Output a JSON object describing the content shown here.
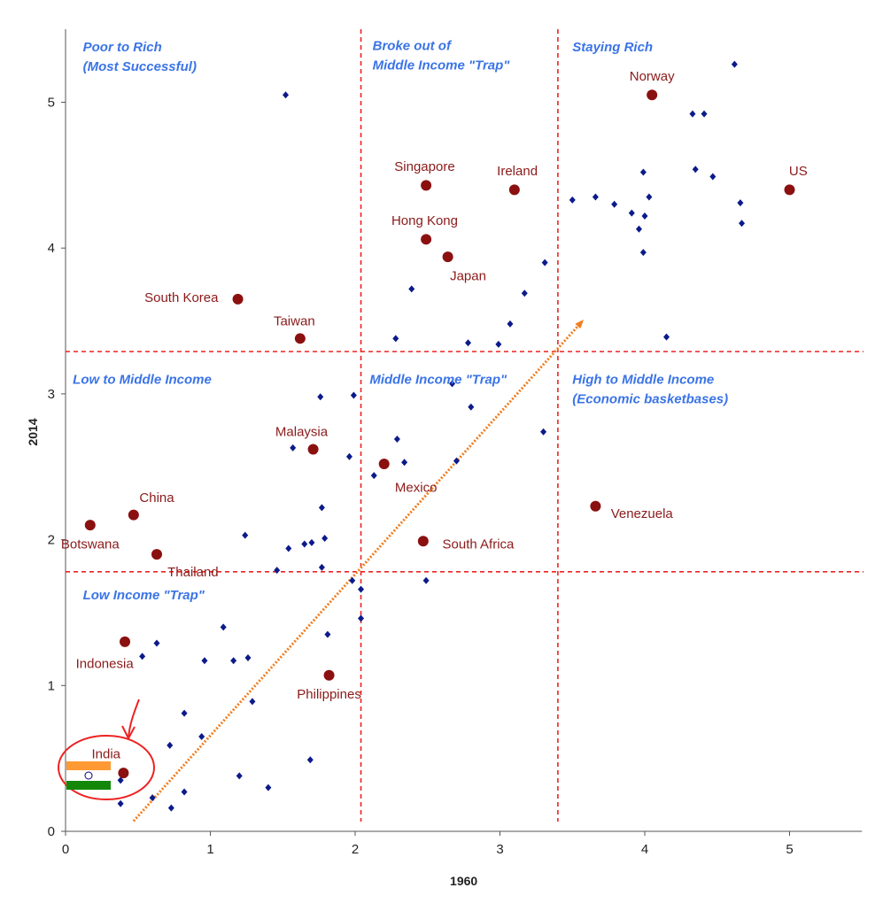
{
  "chart_data": {
    "type": "scatter",
    "xlabel": "1960",
    "ylabel": "2014",
    "xlim": [
      0,
      5.5
    ],
    "ylim": [
      0,
      5.5
    ],
    "xticks": [
      "0",
      "1",
      "2",
      "3",
      "4",
      "5"
    ],
    "yticks": [
      "0",
      "1",
      "2",
      "3",
      "4",
      "5"
    ],
    "thresholds": {
      "x": [
        2.04,
        3.4
      ],
      "y": [
        1.78,
        3.29
      ]
    },
    "quadrant_labels": [
      {
        "lines": [
          "Poor to Rich",
          "(Most Successful)"
        ],
        "x": 0.12,
        "y": 5.38
      },
      {
        "lines": [
          "Broke out of",
          "Middle Income \"Trap\""
        ],
        "x": 2.12,
        "y": 5.39
      },
      {
        "lines": [
          "Staying Rich"
        ],
        "x": 3.5,
        "y": 5.38
      },
      {
        "lines": [
          "Low to Middle Income"
        ],
        "x": 0.05,
        "y": 3.1
      },
      {
        "lines": [
          "Middle Income \"Trap\""
        ],
        "x": 2.1,
        "y": 3.1
      },
      {
        "lines": [
          "High to Middle Income",
          "(Economic basketbases)"
        ],
        "x": 3.5,
        "y": 3.1
      },
      {
        "lines": [
          "Low Income \"Trap\""
        ],
        "x": 0.12,
        "y": 1.62
      }
    ],
    "highlighted": [
      {
        "name": "Norway",
        "x": 4.05,
        "y": 5.05,
        "lx": 4.05,
        "ly": 5.18
      },
      {
        "name": "US",
        "x": 5.0,
        "y": 4.4,
        "lx": 5.06,
        "ly": 4.53
      },
      {
        "name": "Singapore",
        "x": 2.49,
        "y": 4.43,
        "lx": 2.48,
        "ly": 4.56
      },
      {
        "name": "Ireland",
        "x": 3.1,
        "y": 4.4,
        "lx": 3.12,
        "ly": 4.53
      },
      {
        "name": "Hong Kong",
        "x": 2.49,
        "y": 4.06,
        "lx": 2.48,
        "ly": 4.19
      },
      {
        "name": "Japan",
        "x": 2.64,
        "y": 3.94,
        "lx": 2.78,
        "ly": 3.81
      },
      {
        "name": "South Korea",
        "x": 1.19,
        "y": 3.65,
        "lx": 0.8,
        "ly": 3.66
      },
      {
        "name": "Taiwan",
        "x": 1.62,
        "y": 3.38,
        "lx": 1.58,
        "ly": 3.5
      },
      {
        "name": "Malaysia",
        "x": 1.71,
        "y": 2.62,
        "lx": 1.63,
        "ly": 2.74
      },
      {
        "name": "Mexico",
        "x": 2.2,
        "y": 2.52,
        "lx": 2.42,
        "ly": 2.36
      },
      {
        "name": "China",
        "x": 0.47,
        "y": 2.17,
        "lx": 0.63,
        "ly": 2.29
      },
      {
        "name": "Botswana",
        "x": 0.17,
        "y": 2.1,
        "lx": 0.17,
        "ly": 1.97
      },
      {
        "name": "Thailand",
        "x": 0.63,
        "y": 1.9,
        "lx": 0.88,
        "ly": 1.78
      },
      {
        "name": "South Africa",
        "x": 2.47,
        "y": 1.99,
        "lx": 2.85,
        "ly": 1.97
      },
      {
        "name": "Venezuela",
        "x": 3.66,
        "y": 2.23,
        "lx": 3.98,
        "ly": 2.18
      },
      {
        "name": "Indonesia",
        "x": 0.41,
        "y": 1.3,
        "lx": 0.27,
        "ly": 1.15
      },
      {
        "name": "Philippines",
        "x": 1.82,
        "y": 1.07,
        "lx": 1.82,
        "ly": 0.94
      },
      {
        "name": "India",
        "x": 0.4,
        "y": 0.4,
        "lx": 0.28,
        "ly": 0.53
      }
    ],
    "points": [
      [
        1.52,
        5.05
      ],
      [
        4.62,
        5.26
      ],
      [
        4.33,
        4.92
      ],
      [
        4.41,
        4.92
      ],
      [
        3.99,
        4.52
      ],
      [
        4.35,
        4.54
      ],
      [
        4.47,
        4.49
      ],
      [
        3.5,
        4.33
      ],
      [
        3.66,
        4.35
      ],
      [
        3.79,
        4.3
      ],
      [
        3.91,
        4.24
      ],
      [
        4.0,
        4.22
      ],
      [
        4.03,
        4.35
      ],
      [
        3.96,
        4.13
      ],
      [
        3.99,
        3.97
      ],
      [
        4.66,
        4.31
      ],
      [
        4.67,
        4.17
      ],
      [
        3.31,
        3.9
      ],
      [
        2.39,
        3.72
      ],
      [
        3.17,
        3.69
      ],
      [
        3.07,
        3.48
      ],
      [
        2.28,
        3.38
      ],
      [
        2.78,
        3.35
      ],
      [
        2.99,
        3.34
      ],
      [
        4.15,
        3.39
      ],
      [
        2.67,
        3.07
      ],
      [
        2.8,
        2.91
      ],
      [
        3.3,
        2.74
      ],
      [
        2.29,
        2.69
      ],
      [
        2.34,
        2.53
      ],
      [
        2.7,
        2.54
      ],
      [
        2.13,
        2.44
      ],
      [
        1.76,
        2.98
      ],
      [
        1.99,
        2.99
      ],
      [
        1.57,
        2.63
      ],
      [
        1.96,
        2.57
      ],
      [
        1.77,
        2.22
      ],
      [
        1.24,
        2.03
      ],
      [
        1.54,
        1.94
      ],
      [
        1.65,
        1.97
      ],
      [
        1.7,
        1.98
      ],
      [
        1.79,
        2.01
      ],
      [
        1.77,
        1.81
      ],
      [
        1.46,
        1.79
      ],
      [
        1.98,
        1.72
      ],
      [
        2.04,
        1.66
      ],
      [
        2.49,
        1.72
      ],
      [
        2.04,
        1.46
      ],
      [
        1.09,
        1.4
      ],
      [
        1.81,
        1.35
      ],
      [
        0.63,
        1.29
      ],
      [
        0.53,
        1.2
      ],
      [
        0.96,
        1.17
      ],
      [
        1.16,
        1.17
      ],
      [
        1.26,
        1.19
      ],
      [
        1.29,
        0.89
      ],
      [
        0.82,
        0.81
      ],
      [
        0.94,
        0.65
      ],
      [
        0.72,
        0.59
      ],
      [
        1.69,
        0.49
      ],
      [
        1.2,
        0.38
      ],
      [
        1.4,
        0.3
      ],
      [
        0.82,
        0.27
      ],
      [
        0.6,
        0.23
      ],
      [
        0.38,
        0.35
      ],
      [
        0.38,
        0.19
      ],
      [
        0.73,
        0.16
      ]
    ],
    "trend_arrow": {
      "from": [
        0.47,
        0.07
      ],
      "to": [
        3.57,
        3.5
      ]
    }
  }
}
